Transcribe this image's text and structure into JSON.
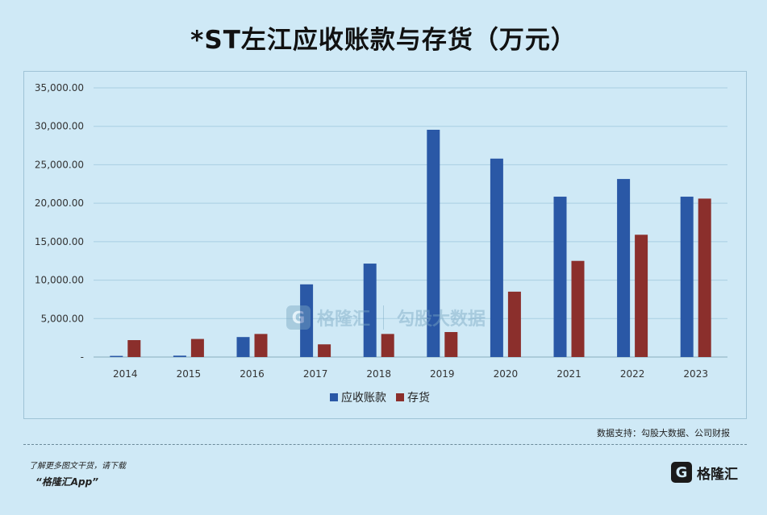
{
  "title": "*ST左江应收账款与存货（万元）",
  "source": "数据支持：勾股大数据、公司财报",
  "footer": {
    "note": "了解更多图文干货，请下载",
    "app": "“格隆汇App”",
    "brand_mark": "G",
    "brand_name": "格隆汇"
  },
  "watermark": {
    "mark": "G",
    "brand": "格隆汇",
    "partner": "勾股大数据"
  },
  "colors": {
    "receivables": "#2a58a6",
    "inventory": "#8b2f2c",
    "grid": "#a9cfe2",
    "axis": "#8aaebf"
  },
  "chart_data": {
    "type": "bar",
    "categories": [
      "2014",
      "2015",
      "2016",
      "2017",
      "2018",
      "2019",
      "2020",
      "2021",
      "2022",
      "2023"
    ],
    "series": [
      {
        "name": "应收账款",
        "values": [
          150,
          180,
          2600,
          9450,
          12150,
          29550,
          25800,
          20850,
          23150,
          20850
        ]
      },
      {
        "name": "存货",
        "values": [
          2200,
          2350,
          3000,
          1650,
          3000,
          3250,
          8500,
          12500,
          15900,
          20600
        ]
      }
    ],
    "yticks": [
      "-",
      "5,000.00",
      "10,000.00",
      "15,000.00",
      "20,000.00",
      "25,000.00",
      "30,000.00",
      "35,000.00"
    ],
    "ylim": [
      0,
      35000
    ],
    "grid": true,
    "legend_position": "bottom"
  }
}
